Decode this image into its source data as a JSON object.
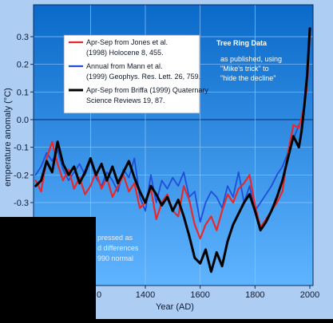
{
  "chart_data": {
    "type": "line",
    "title": "",
    "xlabel": "Year (AD)",
    "ylabel": "emperature anomaly (°C)",
    "xlim": [
      1000,
      2000
    ],
    "ylim": [
      -0.55,
      0.35
    ],
    "x_ticks": [
      1400,
      1600,
      1800,
      2000
    ],
    "y_ticks": [
      0.3,
      0.2,
      0.1,
      0.0,
      -0.1,
      -0.2,
      -0.3
    ],
    "x_tick_labels": [
      "1400",
      "1600",
      "1800",
      "2000"
    ],
    "y_tick_labels": [
      "0.3",
      "0.2",
      "0.1",
      "0.0",
      "-0.1",
      "-0.2",
      "-0.3"
    ],
    "series": [
      {
        "name": "Jones",
        "color": "#e8282a",
        "x": [
          1000,
          1020,
          1040,
          1060,
          1080,
          1100,
          1120,
          1140,
          1160,
          1180,
          1200,
          1220,
          1240,
          1260,
          1280,
          1300,
          1320,
          1340,
          1360,
          1380,
          1400,
          1420,
          1440,
          1460,
          1480,
          1500,
          1520,
          1540,
          1560,
          1580,
          1600,
          1620,
          1640,
          1660,
          1680,
          1700,
          1720,
          1740,
          1760,
          1780,
          1800,
          1820,
          1840,
          1860,
          1880,
          1900,
          1920,
          1940,
          1960,
          1980,
          1990,
          2000
        ],
        "y": [
          -0.22,
          -0.26,
          -0.14,
          -0.08,
          -0.16,
          -0.22,
          -0.18,
          -0.25,
          -0.21,
          -0.27,
          -0.24,
          -0.19,
          -0.25,
          -0.21,
          -0.28,
          -0.24,
          -0.2,
          -0.26,
          -0.23,
          -0.32,
          -0.3,
          -0.25,
          -0.36,
          -0.3,
          -0.27,
          -0.33,
          -0.35,
          -0.24,
          -0.29,
          -0.38,
          -0.43,
          -0.38,
          -0.35,
          -0.4,
          -0.33,
          -0.27,
          -0.3,
          -0.25,
          -0.23,
          -0.2,
          -0.31,
          -0.39,
          -0.36,
          -0.33,
          -0.3,
          -0.26,
          -0.12,
          -0.02,
          -0.03,
          0.05,
          0.12,
          0.31
        ]
      },
      {
        "name": "Mann",
        "color": "#1f4fd8",
        "x": [
          1000,
          1020,
          1040,
          1060,
          1080,
          1100,
          1120,
          1140,
          1160,
          1180,
          1200,
          1220,
          1240,
          1260,
          1280,
          1300,
          1320,
          1340,
          1360,
          1380,
          1400,
          1420,
          1440,
          1460,
          1480,
          1500,
          1520,
          1540,
          1560,
          1580,
          1600,
          1620,
          1640,
          1660,
          1680,
          1700,
          1720,
          1740,
          1760,
          1780,
          1800,
          1820,
          1840,
          1860,
          1880,
          1900,
          1920,
          1940,
          1960,
          1980
        ],
        "y": [
          -0.2,
          -0.17,
          -0.12,
          -0.15,
          -0.11,
          -0.18,
          -0.22,
          -0.19,
          -0.16,
          -0.2,
          -0.15,
          -0.21,
          -0.24,
          -0.19,
          -0.22,
          -0.26,
          -0.18,
          -0.21,
          -0.14,
          -0.28,
          -0.33,
          -0.2,
          -0.3,
          -0.22,
          -0.25,
          -0.21,
          -0.24,
          -0.19,
          -0.28,
          -0.26,
          -0.37,
          -0.3,
          -0.26,
          -0.28,
          -0.32,
          -0.24,
          -0.28,
          -0.19,
          -0.3,
          -0.24,
          -0.33,
          -0.3,
          -0.27,
          -0.24,
          -0.2,
          -0.17,
          -0.12,
          -0.07,
          -0.02,
          0.02
        ]
      },
      {
        "name": "Briffa",
        "color": "#000000",
        "x": [
          1000,
          1020,
          1040,
          1060,
          1080,
          1100,
          1120,
          1140,
          1160,
          1180,
          1200,
          1220,
          1240,
          1260,
          1280,
          1300,
          1320,
          1340,
          1360,
          1380,
          1400,
          1420,
          1440,
          1460,
          1480,
          1500,
          1520,
          1540,
          1560,
          1580,
          1600,
          1620,
          1640,
          1660,
          1680,
          1700,
          1720,
          1740,
          1760,
          1780,
          1800,
          1820,
          1840,
          1860,
          1880,
          1900,
          1920,
          1940,
          1960,
          1970,
          1980,
          1990,
          2000
        ],
        "y": [
          -0.24,
          -0.22,
          -0.15,
          -0.19,
          -0.08,
          -0.16,
          -0.2,
          -0.17,
          -0.23,
          -0.19,
          -0.14,
          -0.2,
          -0.16,
          -0.22,
          -0.17,
          -0.23,
          -0.19,
          -0.15,
          -0.21,
          -0.26,
          -0.3,
          -0.24,
          -0.27,
          -0.31,
          -0.28,
          -0.33,
          -0.29,
          -0.35,
          -0.42,
          -0.5,
          -0.52,
          -0.47,
          -0.55,
          -0.48,
          -0.53,
          -0.44,
          -0.38,
          -0.34,
          -0.3,
          -0.27,
          -0.33,
          -0.4,
          -0.37,
          -0.33,
          -0.28,
          -0.22,
          -0.14,
          -0.06,
          -0.1,
          -0.04,
          0.05,
          0.16,
          0.33
        ]
      }
    ],
    "legend": {
      "position": "top-left",
      "entries": [
        {
          "color": "#e8282a",
          "lines": [
            "Apr-Sep from Jones et al.",
            "(1998) Holocene 8, 455."
          ]
        },
        {
          "color": "#1f4fd8",
          "lines": [
            "Annual from Mann et al.",
            "(1999) Geophys. Res. Lett. 26, 759."
          ]
        },
        {
          "color": "#000000",
          "lines": [
            "Apr-Sep from Briffa (1999) Quaternary",
            "Science Reviews 19, 87."
          ]
        }
      ]
    },
    "annotation": {
      "title": "Tree Ring Data",
      "lines": [
        "as published, using",
        "\"Mike's trick\" to",
        "\"hide the decline\""
      ]
    },
    "note_lines": [
      "pressed as",
      "d differences",
      "990 normal"
    ],
    "partial_tick_label": "0"
  },
  "colors": {
    "sky_top": "#0a6ac9",
    "sky_bottom": "#5fb4ff",
    "grid": "#8fc6ff",
    "zero_line": "#0c3f82",
    "frame": "#082a5e",
    "occluder": "#000000"
  }
}
